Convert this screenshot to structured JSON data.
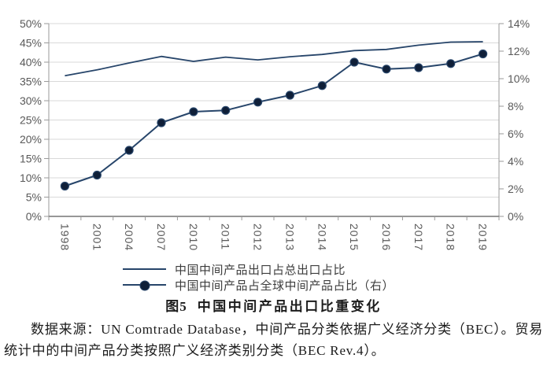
{
  "figure": {
    "caption_label": "图5",
    "caption_title": "中国中间产品出口比重变化",
    "source_note": "数据来源：UN Comtrade Database，中间产品分类依据广义经济分类（BEC）。贸易统计中的中间产品分类按照广义经济类别分类（BEC Rev.4）。"
  },
  "colors": {
    "line": "#27456a",
    "marker": "#0f1f38",
    "gridline": "#d9d9d9",
    "axis": "#9a9a9a",
    "baseline": "#595959",
    "tick_label": "#595959"
  },
  "chart_data": {
    "type": "line",
    "categories": [
      "1998",
      "2001",
      "2004",
      "2007",
      "2010",
      "2011",
      "2012",
      "2013",
      "2014",
      "2015",
      "2016",
      "2017",
      "2018",
      "2019"
    ],
    "series": [
      {
        "name": "中国中间产品出口占总出口占比",
        "axis": "left",
        "marker": "none",
        "values": [
          36.5,
          38.0,
          39.8,
          41.5,
          40.2,
          41.3,
          40.6,
          41.4,
          42.0,
          43.0,
          43.3,
          44.4,
          45.2,
          45.3
        ]
      },
      {
        "name": "中国中间产品占全球中间产品占比（右）",
        "axis": "right",
        "marker": "circle",
        "values": [
          2.2,
          3.0,
          4.8,
          6.8,
          7.6,
          7.7,
          8.3,
          8.8,
          9.5,
          11.2,
          10.7,
          10.8,
          11.1,
          11.8
        ]
      }
    ],
    "left_axis": {
      "min": 0,
      "max": 50,
      "step": 5,
      "tick_labels": [
        "0%",
        "5%",
        "10%",
        "15%",
        "20%",
        "25%",
        "30%",
        "35%",
        "40%",
        "45%",
        "50%"
      ]
    },
    "right_axis": {
      "min": 0,
      "max": 14,
      "step": 2,
      "tick_labels": [
        "0%",
        "2%",
        "4%",
        "6%",
        "8%",
        "10%",
        "12%",
        "14%"
      ]
    },
    "grid": true,
    "legend_position": "bottom"
  }
}
